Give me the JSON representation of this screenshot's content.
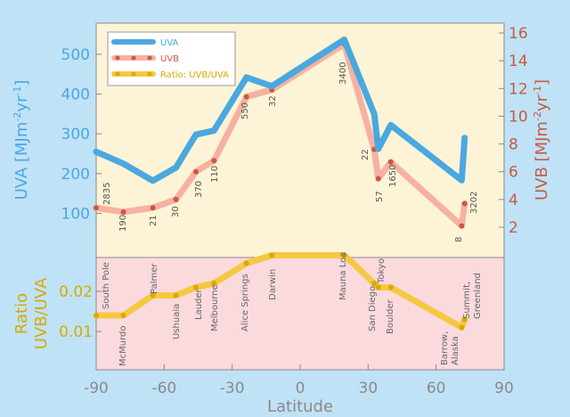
{
  "chart_data": {
    "type": "line",
    "x_axis": {
      "label": "Latitude",
      "range": [
        -90,
        90
      ],
      "ticks": [
        "-90",
        "-60",
        "-30",
        "0",
        "30",
        "60",
        "90"
      ]
    },
    "upper_panel": {
      "left_axis": {
        "label": "UVA [MJm-2yr-1]",
        "range": [
          0,
          600
        ],
        "ticks": [
          "100",
          "200",
          "300",
          "400",
          "500"
        ],
        "color": "#4aa8e0"
      },
      "right_axis": {
        "label": "UVB [MJm-2yr-1]",
        "range": [
          0,
          17
        ],
        "ticks": [
          "2",
          "4",
          "6",
          "8",
          "10",
          "12",
          "14",
          "16"
        ],
        "color": "#c85a40"
      },
      "background": "#fdf3d6"
    },
    "lower_panel": {
      "left_axis": {
        "label_line1": "Ratio",
        "label_line2": "UVB/UVA",
        "range": [
          0,
          0.03
        ],
        "ticks": [
          "0.01",
          "0.02"
        ],
        "color": "#d9a900"
      },
      "background": "#fadadd"
    },
    "legend": {
      "placement": "top-left",
      "entries": [
        "UVA",
        "UVB",
        "Ratio: UVB/UVA"
      ]
    },
    "series": [
      {
        "name": "UVA",
        "color": "#4aa8e0",
        "x": [
          -90,
          -78,
          -65,
          -54.8,
          -46,
          -38,
          -23.7,
          -12.5,
          19.5,
          32.7,
          34.5,
          40,
          71.3,
          72.6
        ],
        "values": [
          255,
          225,
          182,
          215,
          298,
          308,
          442,
          420,
          537,
          350,
          262,
          322,
          183,
          290
        ]
      },
      {
        "name": "UVB",
        "color": "#f6b1a2",
        "x": [
          -90,
          -78,
          -65,
          -54.8,
          -46,
          -38,
          -23.7,
          -12.5,
          19.5,
          32.7,
          34.5,
          40,
          71.3,
          72.6
        ],
        "values": [
          3.4,
          3.1,
          3.4,
          4.0,
          6.0,
          6.8,
          11.4,
          11.9,
          15.2,
          7.6,
          5.5,
          6.7,
          2.1,
          3.7
        ]
      },
      {
        "name": "Ratio: UVB/UVA",
        "color": "#f5c842",
        "x": [
          -90,
          -78,
          -65,
          -54.8,
          -46,
          -38,
          -23.7,
          -12.5,
          19.5,
          32.7,
          34.5,
          40,
          71.3,
          72.6
        ],
        "values": [
          0.014,
          0.014,
          0.019,
          0.019,
          0.021,
          0.022,
          0.027,
          0.029,
          0.029,
          0.022,
          0.021,
          0.021,
          0.011,
          0.013
        ]
      }
    ],
    "altitude_labels": [
      {
        "x": -90,
        "text": "2835"
      },
      {
        "x": -78,
        "text": "190"
      },
      {
        "x": -65,
        "text": "21"
      },
      {
        "x": -54.8,
        "text": "30"
      },
      {
        "x": -46,
        "text": "370"
      },
      {
        "x": -38,
        "text": "110"
      },
      {
        "x": -23.7,
        "text": "550"
      },
      {
        "x": -12.5,
        "text": "32"
      },
      {
        "x": 19.5,
        "text": "3400"
      },
      {
        "x": 32.7,
        "text": "22"
      },
      {
        "x": 34.5,
        "text": "57"
      },
      {
        "x": 40,
        "text": "1650"
      },
      {
        "x": 71.3,
        "text": "8"
      },
      {
        "x": 72.6,
        "text": "3202"
      }
    ],
    "site_labels": [
      {
        "x": -90,
        "lines": [
          "South Pole"
        ]
      },
      {
        "x": -78,
        "lines": [
          "McMurdo"
        ]
      },
      {
        "x": -65,
        "lines": [
          "Palmer"
        ]
      },
      {
        "x": -54.8,
        "lines": [
          "Ushuaia"
        ]
      },
      {
        "x": -46,
        "lines": [
          "Lauder"
        ]
      },
      {
        "x": -38,
        "lines": [
          "Melbourne"
        ]
      },
      {
        "x": -23.7,
        "lines": [
          "Alice Springs"
        ]
      },
      {
        "x": -12.5,
        "lines": [
          "Darwin"
        ]
      },
      {
        "x": 19.5,
        "lines": [
          "Mauna Loa"
        ]
      },
      {
        "x": 32.7,
        "lines": [
          "San Diego"
        ]
      },
      {
        "x": 35.7,
        "lines": [
          "Tokyo"
        ]
      },
      {
        "x": 40,
        "lines": [
          "Boulder"
        ]
      },
      {
        "x": 71.3,
        "lines": [
          "Barrow,",
          "Alaska"
        ]
      },
      {
        "x": 72.6,
        "lines": [
          "Summit,",
          "Greenland"
        ]
      }
    ]
  }
}
